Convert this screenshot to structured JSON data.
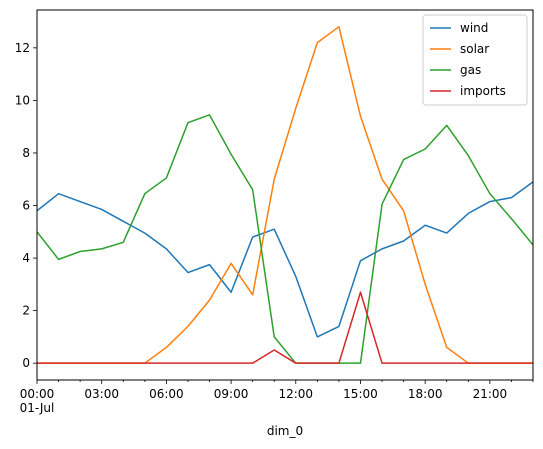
{
  "chart_data": {
    "type": "line",
    "title": "",
    "xlabel": "dim_0",
    "ylabel": "",
    "x": [
      "00:00",
      "01:00",
      "02:00",
      "03:00",
      "04:00",
      "05:00",
      "06:00",
      "07:00",
      "08:00",
      "09:00",
      "10:00",
      "11:00",
      "12:00",
      "13:00",
      "14:00",
      "15:00",
      "16:00",
      "17:00",
      "18:00",
      "19:00",
      "20:00",
      "21:00",
      "22:00",
      "23:00"
    ],
    "x_ticks": [
      {
        "hour": 0,
        "label": "00:00",
        "sublabel": "01-Jul"
      },
      {
        "hour": 3,
        "label": "03:00"
      },
      {
        "hour": 6,
        "label": "06:00"
      },
      {
        "hour": 9,
        "label": "09:00"
      },
      {
        "hour": 12,
        "label": "12:00"
      },
      {
        "hour": 15,
        "label": "15:00"
      },
      {
        "hour": 18,
        "label": "18:00"
      },
      {
        "hour": 21,
        "label": "21:00"
      }
    ],
    "xlim": [
      0,
      23
    ],
    "ylim": [
      -0.64,
      13.44
    ],
    "y_ticks": [
      0,
      2,
      4,
      6,
      8,
      10,
      12
    ],
    "grid": false,
    "legend_position": "top-right",
    "series": [
      {
        "name": "wind",
        "color": "#1f77b4",
        "values": [
          5.8,
          6.45,
          6.15,
          5.85,
          5.4,
          4.95,
          4.35,
          3.45,
          3.75,
          2.7,
          4.8,
          5.1,
          3.3,
          1.0,
          1.4,
          3.9,
          4.35,
          4.65,
          5.25,
          4.95,
          5.7,
          6.15,
          6.3,
          6.9
        ]
      },
      {
        "name": "solar",
        "color": "#ff7f0e",
        "values": [
          0,
          0,
          0,
          0,
          0,
          0,
          0.6,
          1.4,
          2.4,
          3.8,
          2.6,
          7.0,
          9.7,
          12.2,
          12.8,
          9.4,
          7.0,
          5.8,
          3.0,
          0.6,
          0,
          0,
          0,
          0
        ]
      },
      {
        "name": "gas",
        "color": "#2ca02c",
        "values": [
          5.0,
          3.95,
          4.25,
          4.35,
          4.6,
          6.45,
          7.05,
          9.15,
          9.45,
          7.95,
          6.6,
          1.0,
          0,
          0,
          0,
          0,
          6.05,
          7.75,
          8.15,
          9.05,
          7.9,
          6.45,
          5.5,
          4.5
        ]
      },
      {
        "name": "imports",
        "color": "#d62728",
        "values": [
          0,
          0,
          0,
          0,
          0,
          0,
          0,
          0,
          0,
          0,
          0,
          0.5,
          0,
          0,
          0,
          2.7,
          0,
          0,
          0,
          0,
          0,
          0,
          0,
          0
        ]
      }
    ]
  }
}
